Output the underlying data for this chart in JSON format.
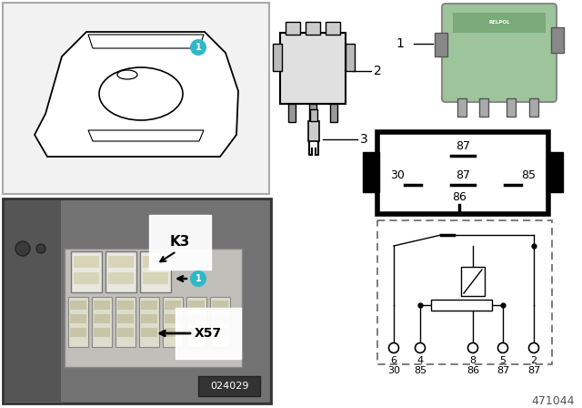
{
  "bg_color": "#ffffff",
  "diagram_num": "471044",
  "photo_num": "024029",
  "relay_green": "#9dc49a",
  "teal_circle": "#2eb8c8",
  "pin_diag_row1": "87",
  "pin_diag_row2": [
    "30",
    "87",
    "85"
  ],
  "pin_diag_row3": "86",
  "circuit_pin_top": [
    "6",
    "4",
    "8",
    "5",
    "2"
  ],
  "circuit_pin_bot": [
    "30",
    "85",
    "86",
    "87",
    "87"
  ]
}
